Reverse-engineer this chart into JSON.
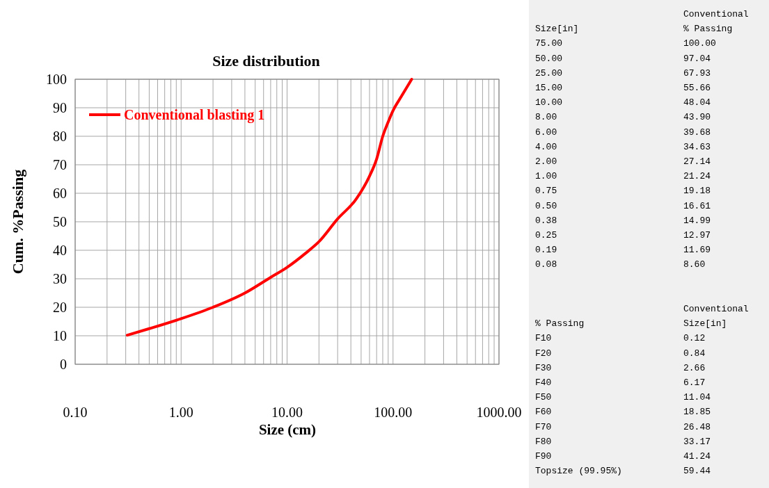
{
  "chart_data": [
    {
      "type": "line",
      "title": "Size distribution",
      "xlabel": "Size (cm)",
      "ylabel": "Cum. %Passing",
      "log": "x",
      "grid": true,
      "legend": "top left",
      "line_style": "solid",
      "marker": "none",
      "xlim": [
        0.1,
        1000
      ],
      "xticks": [
        {
          "value": 0.1,
          "label": "0.10"
        },
        {
          "value": 1,
          "label": "1.00"
        },
        {
          "value": 10,
          "label": "10.00"
        },
        {
          "value": 100,
          "label": "100.00"
        },
        {
          "value": 1000,
          "label": "1000.00"
        }
      ],
      "ylim": [
        0,
        100
      ],
      "yticks": [
        0,
        10,
        20,
        30,
        40,
        50,
        60,
        70,
        80,
        90,
        100
      ],
      "series": [
        {
          "name": "Conventional blasting 1",
          "color": "#ff0000",
          "x": [
            0.31,
            0.5,
            1,
            2,
            4,
            7,
            10,
            15,
            20,
            30,
            45,
            60,
            70,
            80,
            90,
            100,
            120,
            150
          ],
          "values": [
            10.2,
            12.5,
            16,
            20,
            25,
            30.5,
            34,
            39,
            43,
            51,
            58,
            66,
            72,
            80,
            85,
            89,
            94,
            100
          ]
        }
      ]
    },
    {
      "type": "other",
      "title": "Conventional",
      "annotations": [
        "Size[in]",
        "% Passing",
        "75.00",
        "100.00",
        "50.00",
        "97.04",
        "25.00",
        "67.93",
        "15.00",
        "55.66",
        "10.00",
        "48.04",
        "8.00",
        "43.90",
        "6.00",
        "39.68",
        "4.00",
        "34.63",
        "2.00",
        "27.14",
        "1.00",
        "21.24",
        "0.75",
        "19.18",
        "0.50",
        "16.61",
        "0.38",
        "14.99",
        "0.25",
        "12.97",
        "0.19",
        "11.69",
        "0.08",
        "8.60"
      ]
    },
    {
      "type": "other",
      "title": "Conventional",
      "annotations": [
        "% Passing",
        "Size[in]",
        "F10",
        "0.12",
        "F20",
        "0.84",
        "F30",
        "2.66",
        "F40",
        "6.17",
        "F50",
        "11.04",
        "F60",
        "18.85",
        "F70",
        "26.48",
        "F80",
        "33.17",
        "F90",
        "41.24",
        "Topsize (99.95%)",
        "59.44"
      ]
    }
  ]
}
